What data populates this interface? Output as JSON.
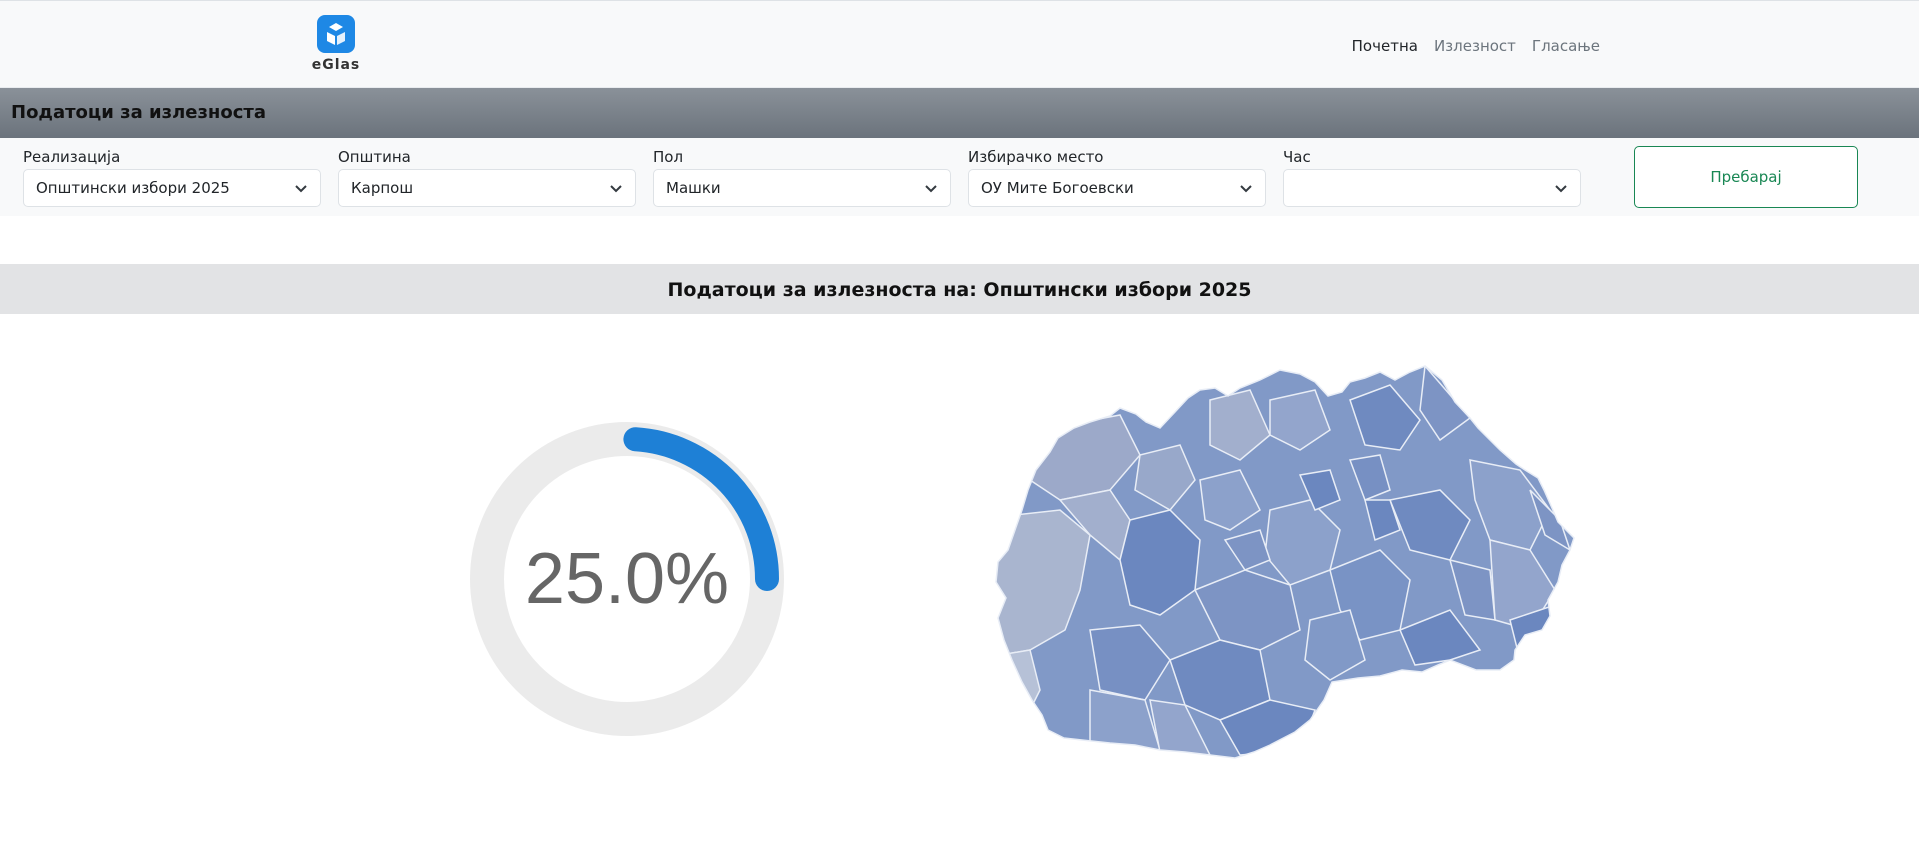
{
  "brand": {
    "name": "eGlas"
  },
  "nav": {
    "items": [
      {
        "label": "Почетна"
      },
      {
        "label": "Излезност"
      },
      {
        "label": "Гласање"
      }
    ]
  },
  "section": {
    "title": "Податоци за излезноста"
  },
  "filters": {
    "realization": {
      "label": "Реализација",
      "value": "Општински избори 2025"
    },
    "municipality": {
      "label": "Општина",
      "value": "Карпош"
    },
    "gender": {
      "label": "Пол",
      "value": "Машки"
    },
    "polling_station": {
      "label": "Избирачко место",
      "value": "ОУ Мите Богоевски"
    },
    "hour": {
      "label": "Час",
      "value": ""
    },
    "search_label": "Пребарај"
  },
  "results": {
    "title": "Податоци за излезноста на: Општински избори 2025",
    "turnout_text": "25.0%",
    "turnout_fraction": 0.25
  },
  "colors": {
    "gauge_fill": "#1e80d6",
    "gauge_track": "#ebebeb",
    "search_accent": "#198754",
    "map_dark": "#6b87bf",
    "map_mid": "#8199c7",
    "map_light": "#a9b5cf"
  }
}
